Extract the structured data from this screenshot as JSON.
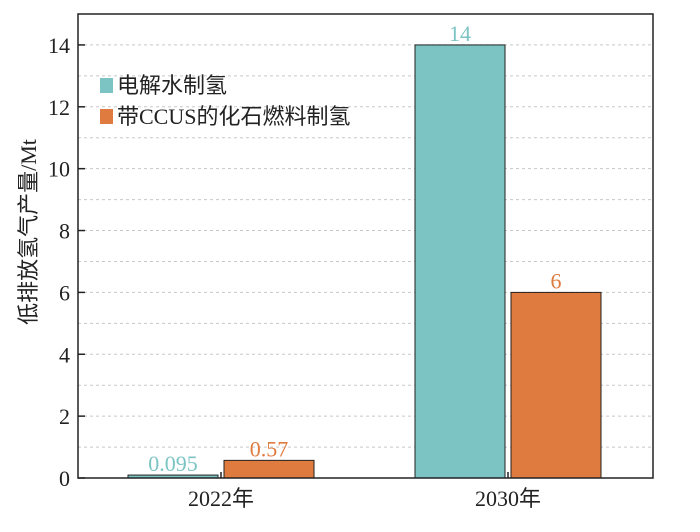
{
  "chart_data": {
    "type": "bar",
    "categories": [
      "2022年",
      "2030年"
    ],
    "series": [
      {
        "name": "电解水制氢",
        "values": [
          0.095,
          14
        ],
        "labels": [
          "0.095",
          "14"
        ],
        "color": "#7cc4c4"
      },
      {
        "name": "带CCUS的化石燃料制氢",
        "values": [
          0.57,
          6
        ],
        "labels": [
          "0.57",
          "6"
        ],
        "color": "#e07b3f"
      }
    ],
    "title": "",
    "xlabel": "",
    "ylabel": "低排放氢气产量/Mt",
    "ylim": [
      0,
      15
    ],
    "yticks": [
      0,
      2,
      4,
      6,
      8,
      10,
      12,
      14
    ],
    "grid": true,
    "legend_position": "upper-left"
  }
}
